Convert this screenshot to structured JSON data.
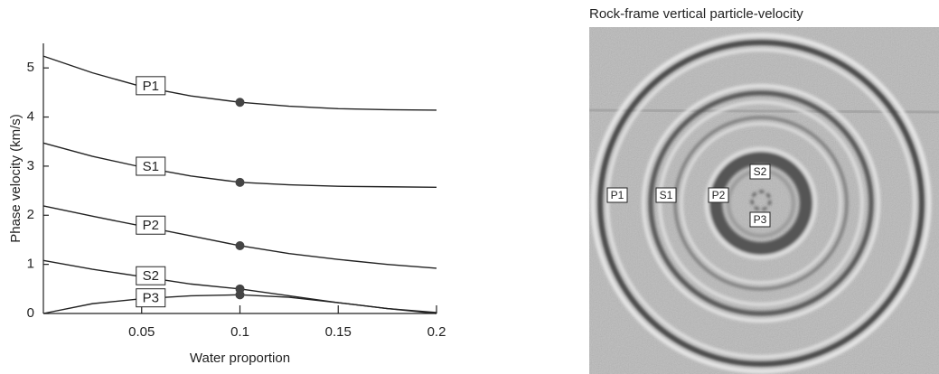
{
  "chart_data": {
    "type": "line",
    "x_label": "Water proportion",
    "y_label": "Phase velocity (km/s)",
    "x": [
      0,
      0.025,
      0.05,
      0.075,
      0.1,
      0.125,
      0.15,
      0.175,
      0.2
    ],
    "series": [
      {
        "name": "P1",
        "color": "#222222",
        "values": [
          5.24,
          4.9,
          4.62,
          4.43,
          4.3,
          4.22,
          4.17,
          4.15,
          4.14
        ]
      },
      {
        "name": "S1",
        "color": "#222222",
        "values": [
          3.47,
          3.2,
          2.98,
          2.8,
          2.67,
          2.62,
          2.59,
          2.58,
          2.57
        ]
      },
      {
        "name": "P2",
        "color": "#222222",
        "values": [
          2.19,
          1.98,
          1.78,
          1.58,
          1.38,
          1.22,
          1.1,
          1.0,
          0.92
        ]
      },
      {
        "name": "S2",
        "color": "#222222",
        "values": [
          1.08,
          0.9,
          0.75,
          0.6,
          0.5,
          0.36,
          0.22,
          0.1,
          0
        ]
      },
      {
        "name": "P3",
        "color": "#222222",
        "values": [
          0,
          0.2,
          0.3,
          0.36,
          0.38,
          0.33,
          0.22,
          0.1,
          0.02
        ]
      }
    ],
    "highlight_x": 0.1,
    "marker_color": "#444444",
    "xlim": [
      0,
      0.2
    ],
    "xticks": [
      0.05,
      0.1,
      0.15,
      0.2
    ],
    "ylim": [
      0,
      5.5
    ],
    "yticks": [
      0,
      1,
      2,
      3,
      4,
      5
    ],
    "grid": false
  },
  "wavefield": {
    "title": "Rock-frame vertical particle-velocity",
    "labels": [
      "P1",
      "S1",
      "P2",
      "S2",
      "P3"
    ]
  }
}
